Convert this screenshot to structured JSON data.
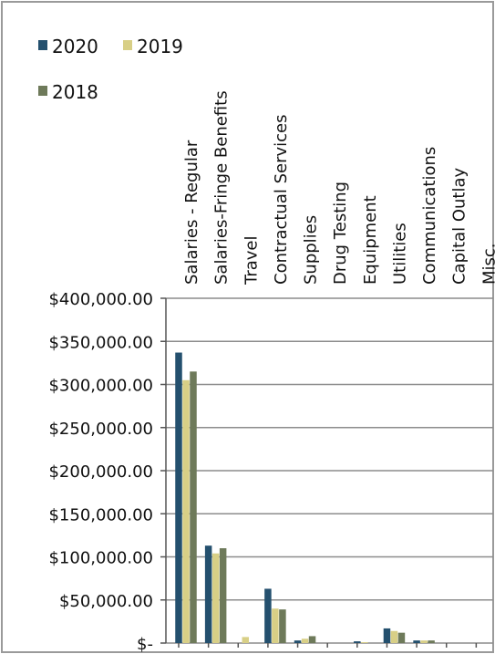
{
  "chart_data": {
    "type": "bar",
    "categories": [
      "Salaries - Regular",
      "Salaries-Fringe Benefits",
      "Travel",
      "Contractual Services",
      "Supplies",
      "Drug Testing",
      "Equipment",
      "Utilities",
      "Communications",
      "Capital Outlay",
      "Misc."
    ],
    "series": [
      {
        "name": "2020",
        "color": "#24506e",
        "values": [
          337000,
          113000,
          0,
          63000,
          3000,
          0,
          2000,
          17000,
          3000,
          0,
          0
        ]
      },
      {
        "name": "2019",
        "color": "#d8cf86",
        "values": [
          305000,
          104000,
          7000,
          40000,
          5000,
          0,
          1000,
          14000,
          3000,
          0,
          0
        ]
      },
      {
        "name": "2018",
        "color": "#6e7a5a",
        "values": [
          315000,
          110000,
          0,
          39000,
          8000,
          0,
          0,
          12000,
          3000,
          0,
          0
        ]
      }
    ],
    "ylim": [
      0,
      400000
    ],
    "yticks": [
      0,
      50000,
      100000,
      150000,
      200000,
      250000,
      300000,
      350000,
      400000
    ],
    "ytick_labels": [
      "$-",
      "$50,000.00",
      "$100,000.00",
      "$150,000.00",
      "$200,000.00",
      "$250,000.00",
      "$300,000.00",
      "$350,000.00",
      "$400,000.00"
    ],
    "grid": true,
    "legend_position": "top-left",
    "category_label_position": "top-rotated"
  }
}
